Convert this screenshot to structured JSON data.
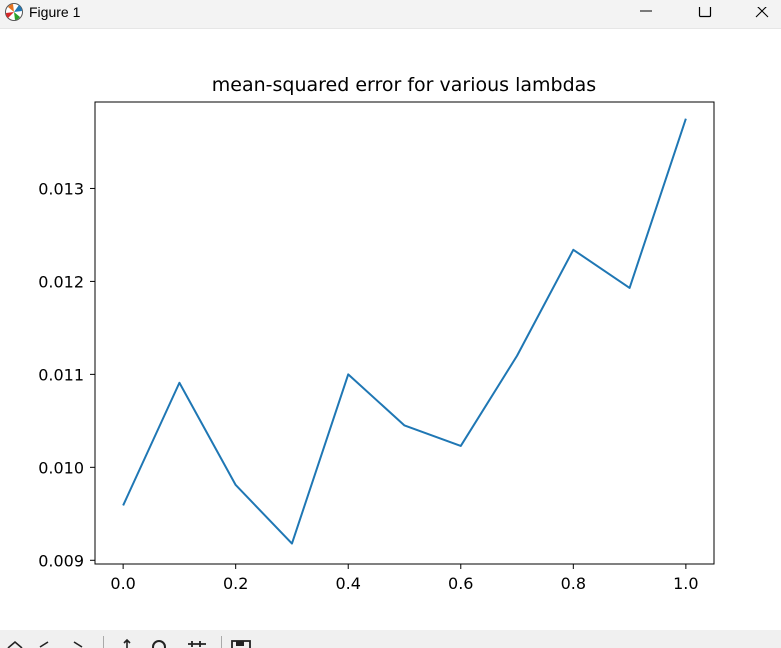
{
  "window": {
    "title": "Figure 1",
    "icons": {
      "app": "matplotlib-logo-icon",
      "minimize": "minimize-icon",
      "maximize": "maximize-icon",
      "close": "close-icon"
    }
  },
  "toolbar": {
    "icons": [
      "home-icon",
      "back-arrow-icon",
      "forward-arrow-icon",
      "pan-icon",
      "zoom-icon",
      "configure-subplots-icon",
      "save-icon"
    ]
  },
  "chart_data": {
    "type": "line",
    "title": "mean-squared error for various lambdas",
    "xlabel": "",
    "ylabel": "",
    "x": [
      0.0,
      0.1,
      0.2,
      0.3,
      0.4,
      0.5,
      0.6,
      0.7,
      0.8,
      0.9,
      1.0
    ],
    "series": [
      {
        "values": [
          0.00959,
          0.01091,
          0.00981,
          0.00918,
          0.011,
          0.01045,
          0.01023,
          0.0112,
          0.01234,
          0.01193,
          0.01375
        ],
        "color": "#1f77b4"
      }
    ],
    "xlim": [
      -0.05,
      1.05
    ],
    "ylim": [
      0.00896,
      0.01393
    ],
    "xticks": [
      "0.0",
      "0.2",
      "0.4",
      "0.6",
      "0.8",
      "1.0"
    ],
    "xtick_values": [
      0.0,
      0.2,
      0.4,
      0.6,
      0.8,
      1.0
    ],
    "yticks": [
      "0.009",
      "0.010",
      "0.011",
      "0.012",
      "0.013"
    ],
    "ytick_values": [
      0.009,
      0.01,
      0.011,
      0.012,
      0.013
    ],
    "grid": false,
    "legend": "none"
  }
}
